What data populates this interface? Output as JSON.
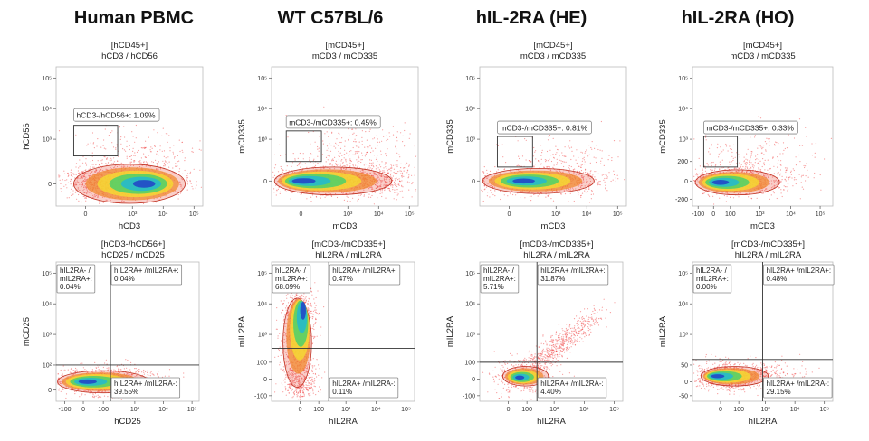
{
  "chart_data": [
    {
      "type": "scatter",
      "panel": "top",
      "column_title": "Human PBMC",
      "header_line1": "[hCD45+]",
      "header_line2": "hCD3 / hCD56",
      "xlabel": "hCD3",
      "ylabel": "hCD56",
      "x_ticks": [
        "0",
        "10³",
        "10⁴",
        "10⁵"
      ],
      "y_ticks": [
        "10⁵",
        "10⁴",
        "10³",
        "0"
      ],
      "gate": {
        "label": "hCD3-/hCD56+: 1.09%",
        "value": 1.09
      },
      "density_center": "high hCD3 / low hCD56"
    },
    {
      "type": "scatter",
      "panel": "top",
      "column_title": "WT C57BL/6",
      "header_line1": "[mCD45+]",
      "header_line2": "mCD3 / mCD335",
      "xlabel": "mCD3",
      "ylabel": "mCD335",
      "x_ticks": [
        "0",
        "10³",
        "10⁴",
        "10⁵"
      ],
      "y_ticks": [
        "10⁵",
        "10⁴",
        "10³",
        "0"
      ],
      "gate": {
        "label": "mCD3-/mCD335+: 0.45%",
        "value": 0.45
      },
      "density_center": "low mCD3 / low mCD335"
    },
    {
      "type": "scatter",
      "panel": "top",
      "column_title": "hIL-2RA (HE)",
      "header_line1": "[mCD45+]",
      "header_line2": "mCD3 / mCD335",
      "xlabel": "mCD3",
      "ylabel": "mCD335",
      "x_ticks": [
        "0",
        "10³",
        "10⁴",
        "10⁵"
      ],
      "y_ticks": [
        "10⁵",
        "10⁴",
        "10³",
        "0"
      ],
      "gate": {
        "label": "mCD3-/mCD335+: 0.81%",
        "value": 0.81
      },
      "density_center": "low mCD3 / low mCD335"
    },
    {
      "type": "scatter",
      "panel": "top",
      "column_title": "hIL-2RA (HO)",
      "header_line1": "[mCD45+]",
      "header_line2": "mCD3 / mCD335",
      "xlabel": "mCD3",
      "ylabel": "mCD335",
      "x_ticks": [
        "-100",
        "0",
        "100",
        "10³",
        "10⁴",
        "10⁵"
      ],
      "y_ticks": [
        "10⁵",
        "10⁴",
        "10³",
        "200",
        "0",
        "-200"
      ],
      "gate": {
        "label": "mCD3-/mCD335+: 0.33%",
        "value": 0.33
      },
      "density_center": "low mCD3 / low mCD335"
    },
    {
      "type": "scatter",
      "panel": "bottom",
      "header_line1": "[hCD3-/hCD56+]",
      "header_line2": "hCD25 / mCD25",
      "xlabel": "hCD25",
      "ylabel": "mCD25",
      "x_ticks": [
        "-100",
        "0",
        "100",
        "10³",
        "10⁴",
        "10⁵"
      ],
      "y_ticks": [
        "10⁵",
        "10⁴",
        "10³",
        "10²",
        "0"
      ],
      "quadrants": [
        {
          "pos": "top-left",
          "label_line1": "hIL2RA- /",
          "label_line2": "mIL2RA+:",
          "label_line3": "0.04%",
          "value": 0.04
        },
        {
          "pos": "top-right",
          "label_line1": "hIL2RA+ /mIL2RA+:",
          "label_line2": "0.04%",
          "value": 0.04
        },
        {
          "pos": "bottom-right",
          "label_line1": "hIL2RA+ /mIL2RA-:",
          "label_line2": "39.55%",
          "value": 39.55
        }
      ]
    },
    {
      "type": "scatter",
      "panel": "bottom",
      "header_line1": "[mCD3-/mCD335+]",
      "header_line2": "hIL2RA / mIL2RA",
      "xlabel": "hIL2RA",
      "ylabel": "mIL2RA",
      "x_ticks": [
        "0",
        "100",
        "10³",
        "10⁴",
        "10⁵"
      ],
      "y_ticks": [
        "10⁵",
        "10⁴",
        "10³",
        "100",
        "0",
        "-100"
      ],
      "quadrants": [
        {
          "pos": "top-left",
          "label_line1": "hIL2RA- /",
          "label_line2": "mIL2RA+:",
          "label_line3": "68.09%",
          "value": 68.09
        },
        {
          "pos": "top-right",
          "label_line1": "hIL2RA+ /mIL2RA+:",
          "label_line2": "0.47%",
          "value": 0.47
        },
        {
          "pos": "bottom-right",
          "label_line1": "hIL2RA+ /mIL2RA-:",
          "label_line2": "0.11%",
          "value": 0.11
        }
      ]
    },
    {
      "type": "scatter",
      "panel": "bottom",
      "header_line1": "[mCD3-/mCD335+]",
      "header_line2": "hIL2RA / mIL2RA",
      "xlabel": "hIL2RA",
      "ylabel": "mIL2RA",
      "x_ticks": [
        "0",
        "100",
        "10³",
        "10⁴",
        "10⁵"
      ],
      "y_ticks": [
        "10⁵",
        "10⁴",
        "10³",
        "100",
        "0",
        "-100"
      ],
      "quadrants": [
        {
          "pos": "top-left",
          "label_line1": "hIL2RA- /",
          "label_line2": "mIL2RA+:",
          "label_line3": "5.71%",
          "value": 5.71
        },
        {
          "pos": "top-right",
          "label_line1": "hIL2RA+ /mIL2RA+:",
          "label_line2": "31.87%",
          "value": 31.87
        },
        {
          "pos": "bottom-right",
          "label_line1": "hIL2RA+ /mIL2RA-:",
          "label_line2": "4.40%",
          "value": 4.4
        }
      ]
    },
    {
      "type": "scatter",
      "panel": "bottom",
      "header_line1": "[mCD3-/mCD335+]",
      "header_line2": "hIL2RA / mIL2RA",
      "xlabel": "hIL2RA",
      "ylabel": "mIL2RA",
      "x_ticks": [
        "0",
        "100",
        "10³",
        "10⁴",
        "10⁵"
      ],
      "y_ticks": [
        "10⁵",
        "10⁴",
        "10³",
        "50",
        "0",
        "-50"
      ],
      "quadrants": [
        {
          "pos": "top-left",
          "label_line1": "hIL2RA- /",
          "label_line2": "mIL2RA+:",
          "label_line3": "0.00%",
          "value": 0.0
        },
        {
          "pos": "top-right",
          "label_line1": "hIL2RA+ /mIL2RA+:",
          "label_line2": "0.48%",
          "value": 0.48
        },
        {
          "pos": "bottom-right",
          "label_line1": "hIL2RA+ /mIL2RA-:",
          "label_line2": "29.15%",
          "value": 29.15
        }
      ]
    }
  ],
  "colors": {
    "dots": "#f04a4a",
    "c1": "#e8402a",
    "c2": "#f08a30",
    "c3": "#f5e030",
    "c4": "#35d070",
    "c5": "#19b5e0",
    "c6": "#2030c8",
    "line": "#333333"
  }
}
